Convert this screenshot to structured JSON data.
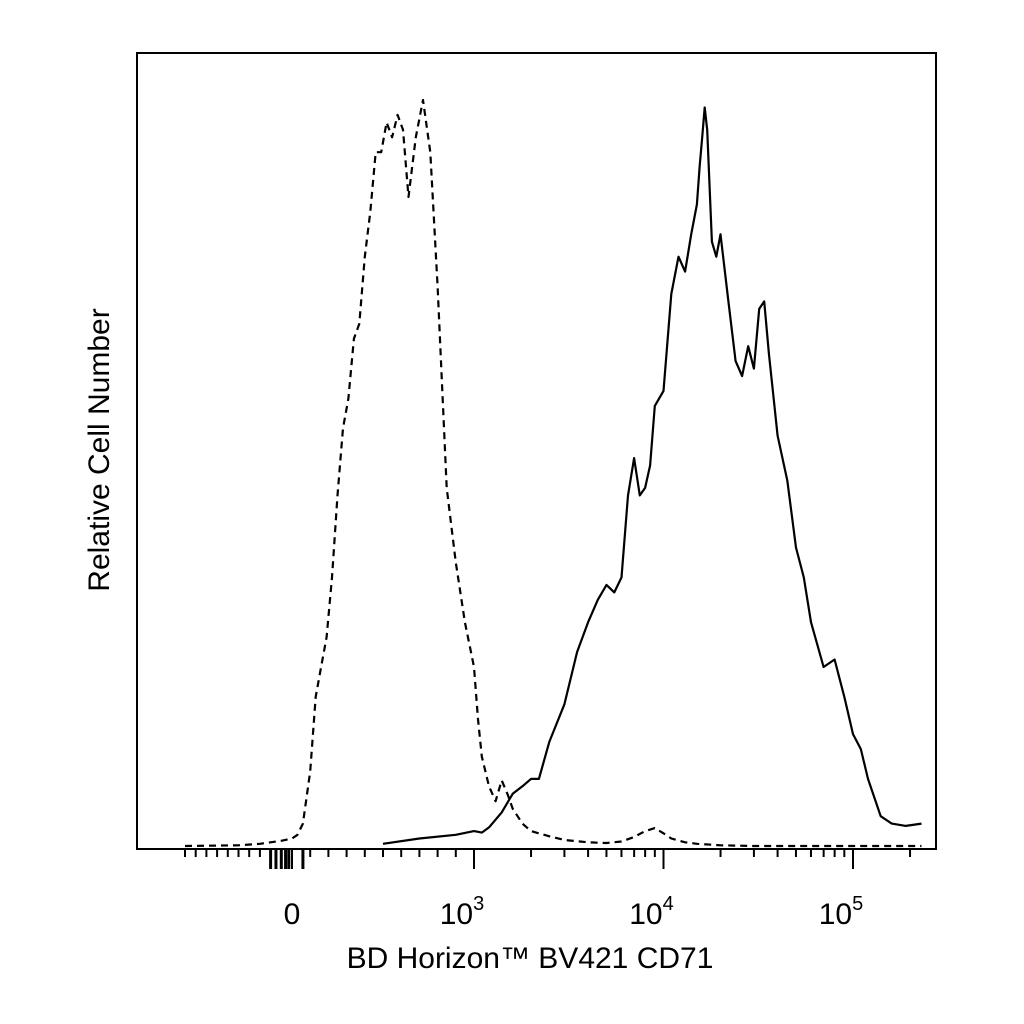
{
  "chart_data": {
    "type": "line",
    "title": "",
    "xlabel": "BD Horizon™ BV421 CD71",
    "ylabel": "Relative Cell Number",
    "x_scale": "biexponential",
    "xlim": [
      -1000,
      230000
    ],
    "ylim": [
      0,
      1
    ],
    "grid": false,
    "legend": "none",
    "x_ticks": [
      {
        "value": 0,
        "base": "0",
        "exp": ""
      },
      {
        "value": 1000,
        "base": "10",
        "exp": "3"
      },
      {
        "value": 10000,
        "base": "10",
        "exp": "4"
      },
      {
        "value": 100000,
        "base": "10",
        "exp": "5"
      }
    ],
    "series": [
      {
        "style": "dashed",
        "x": [
          -1000,
          -500,
          -300,
          -100,
          0,
          30,
          60,
          100,
          130,
          160,
          190,
          220,
          250,
          280,
          310,
          340,
          370,
          400,
          430,
          460,
          490,
          520,
          550,
          580,
          610,
          640,
          680,
          720,
          760,
          800,
          850,
          900,
          950,
          1000,
          1050,
          1100,
          1200,
          1300,
          1400,
          1500,
          1600,
          1800,
          2000,
          2500,
          3000,
          4000,
          5000,
          6000,
          7000,
          8000,
          9000,
          10000,
          11000,
          13000,
          15000,
          20000,
          30000,
          50000,
          100000,
          230000
        ],
        "y": [
          0,
          0.001,
          0.003,
          0.007,
          0.01,
          0.015,
          0.03,
          0.1,
          0.2,
          0.24,
          0.28,
          0.36,
          0.47,
          0.56,
          0.6,
          0.68,
          0.7,
          0.79,
          0.85,
          0.93,
          0.93,
          0.97,
          0.95,
          0.98,
          0.96,
          0.87,
          0.95,
          1.0,
          0.93,
          0.75,
          0.48,
          0.38,
          0.3,
          0.24,
          0.17,
          0.12,
          0.08,
          0.06,
          0.088,
          0.07,
          0.05,
          0.03,
          0.02,
          0.013,
          0.008,
          0.005,
          0.004,
          0.006,
          0.012,
          0.02,
          0.024,
          0.017,
          0.01,
          0.005,
          0.003,
          0.001,
          0.0,
          0.0,
          0.0,
          0.0
        ]
      },
      {
        "style": "solid",
        "x": [
          500,
          700,
          900,
          1000,
          1100,
          1200,
          1400,
          1600,
          1800,
          2000,
          2200,
          2500,
          3000,
          3500,
          4000,
          4500,
          5000,
          5500,
          6000,
          6500,
          7000,
          7500,
          8000,
          8500,
          9000,
          10000,
          11000,
          12000,
          13000,
          14000,
          15000,
          15500,
          16000,
          16500,
          17000,
          18000,
          19000,
          20000,
          22000,
          24000,
          26000,
          28000,
          30000,
          32000,
          34000,
          36000,
          40000,
          45000,
          50000,
          55000,
          60000,
          70000,
          80000,
          90000,
          100000,
          110000,
          120000,
          140000,
          160000,
          190000,
          230000
        ],
        "y": [
          0.003,
          0.01,
          0.015,
          0.02,
          0.018,
          0.025,
          0.045,
          0.07,
          0.08,
          0.09,
          0.09,
          0.14,
          0.19,
          0.26,
          0.3,
          0.33,
          0.35,
          0.34,
          0.36,
          0.47,
          0.52,
          0.47,
          0.48,
          0.51,
          0.59,
          0.61,
          0.74,
          0.79,
          0.77,
          0.82,
          0.86,
          0.91,
          0.95,
          0.99,
          0.96,
          0.81,
          0.79,
          0.82,
          0.73,
          0.65,
          0.63,
          0.67,
          0.64,
          0.72,
          0.73,
          0.66,
          0.55,
          0.49,
          0.4,
          0.36,
          0.3,
          0.24,
          0.25,
          0.2,
          0.15,
          0.13,
          0.09,
          0.04,
          0.03,
          0.027,
          0.03
        ]
      }
    ]
  }
}
